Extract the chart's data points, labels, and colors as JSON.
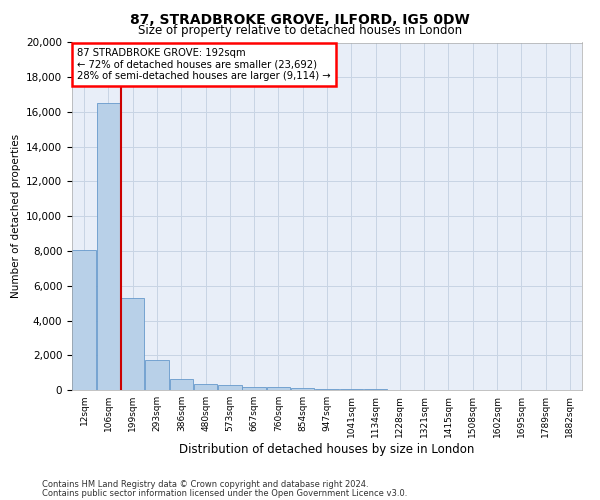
{
  "title": "87, STRADBROKE GROVE, ILFORD, IG5 0DW",
  "subtitle": "Size of property relative to detached houses in London",
  "xlabel": "Distribution of detached houses by size in London",
  "ylabel": "Number of detached properties",
  "bar_color": "#b8d0e8",
  "bar_edge_color": "#6699cc",
  "grid_color": "#c8d4e4",
  "background_color": "#e8eef8",
  "marker_color": "#cc0000",
  "marker_value_idx": 2,
  "annotation_line1": "87 STRADBROKE GROVE: 192sqm",
  "annotation_line2": "← 72% of detached houses are smaller (23,692)",
  "annotation_line3": "28% of semi-detached houses are larger (9,114) →",
  "footer_line1": "Contains HM Land Registry data © Crown copyright and database right 2024.",
  "footer_line2": "Contains public sector information licensed under the Open Government Licence v3.0.",
  "bin_labels": [
    "12sqm",
    "106sqm",
    "199sqm",
    "293sqm",
    "386sqm",
    "480sqm",
    "573sqm",
    "667sqm",
    "760sqm",
    "854sqm",
    "947sqm",
    "1041sqm",
    "1134sqm",
    "1228sqm",
    "1321sqm",
    "1415sqm",
    "1508sqm",
    "1602sqm",
    "1695sqm",
    "1789sqm",
    "1882sqm"
  ],
  "bar_heights": [
    8050,
    16500,
    5300,
    1750,
    650,
    350,
    280,
    200,
    175,
    130,
    80,
    50,
    35,
    25,
    18,
    12,
    8,
    6,
    4,
    3,
    0
  ],
  "ylim": [
    0,
    20000
  ],
  "yticks": [
    0,
    2000,
    4000,
    6000,
    8000,
    10000,
    12000,
    14000,
    16000,
    18000,
    20000
  ]
}
